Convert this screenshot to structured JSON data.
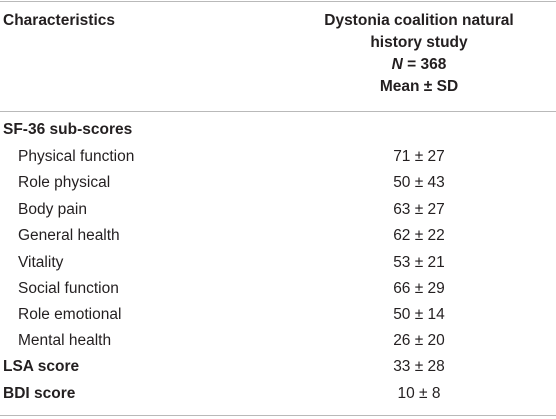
{
  "header": {
    "col1": "Characteristics",
    "col2_line1": "Dystonia coalition natural",
    "col2_line2": "history study",
    "col2_n_label": "N",
    "col2_n_value": " = 368",
    "col2_line4": "Mean ± SD"
  },
  "rows": [
    {
      "label": "SF-36 sub-scores",
      "value": ""
    },
    {
      "label": "Physical function",
      "value": "71 ± 27"
    },
    {
      "label": "Role physical",
      "value": "50 ± 43"
    },
    {
      "label": "Body pain",
      "value": "63 ± 27"
    },
    {
      "label": "General health",
      "value": "62 ± 22"
    },
    {
      "label": "Vitality",
      "value": "53 ± 21"
    },
    {
      "label": "Social function",
      "value": "66 ± 29"
    },
    {
      "label": "Role emotional",
      "value": "50 ± 14"
    },
    {
      "label": "Mental health",
      "value": "26 ± 20"
    },
    {
      "label": "LSA score",
      "value": "33 ± 28"
    },
    {
      "label": "BDI score",
      "value": "10 ± 8"
    }
  ]
}
